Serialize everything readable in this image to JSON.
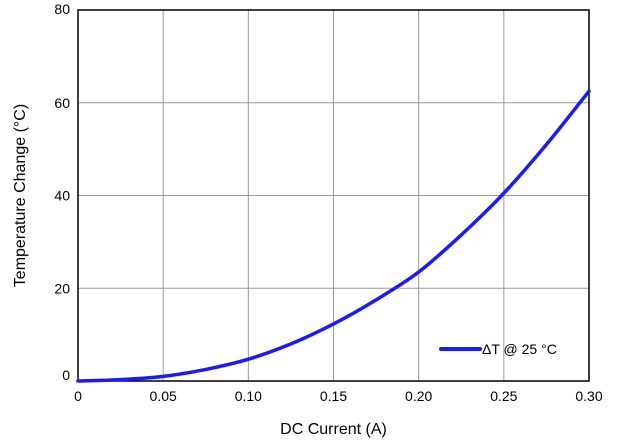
{
  "chart_data": {
    "type": "line",
    "title": "",
    "xlabel": "DC Current (A)",
    "ylabel": "Temperature Change (°C)",
    "xlim": [
      0,
      0.3
    ],
    "ylim": [
      0,
      80
    ],
    "x_ticks": [
      0,
      0.05,
      0.1,
      0.15,
      0.2,
      0.25,
      0.3
    ],
    "x_tick_labels": [
      "0",
      "0.05",
      "0.10",
      "0.15",
      "0.20",
      "0.25",
      "0.30"
    ],
    "y_ticks": [
      0,
      20,
      40,
      60,
      80
    ],
    "y_tick_labels": [
      "0",
      "20",
      "40",
      "60",
      "80"
    ],
    "grid": true,
    "legend_position": "bottom-right",
    "series": [
      {
        "name": "ΔT @ 25 °C",
        "color": "#1a1aff",
        "x": [
          0,
          0.025,
          0.05,
          0.075,
          0.1,
          0.125,
          0.15,
          0.175,
          0.2,
          0.225,
          0.25,
          0.275,
          0.3
        ],
        "y": [
          0,
          0.3,
          1.0,
          2.5,
          4.7,
          8.0,
          12.3,
          17.5,
          23.5,
          31.5,
          40.5,
          51.0,
          62.5
        ]
      }
    ]
  }
}
